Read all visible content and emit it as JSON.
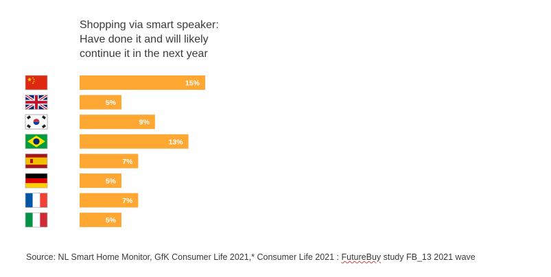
{
  "title_lines": [
    "Shopping via smart speaker:",
    "Have done it and will likely",
    "continue it in the next year"
  ],
  "source": {
    "prefix": "Source:  NL Smart Home Monitor, GfK Consumer Life 2021,* Consumer Life 2021 : ",
    "futurebuy": "FutureBuy",
    "suffix": " study FB_13 2021 wave"
  },
  "chart_data": {
    "type": "bar",
    "orientation": "horizontal",
    "categories": [
      "China",
      "United Kingdom",
      "South Korea",
      "Brazil",
      "Spain",
      "Germany",
      "France",
      "Italy"
    ],
    "category_icons": [
      "flag-china-icon",
      "flag-uk-icon",
      "flag-south-korea-icon",
      "flag-brazil-icon",
      "flag-spain-icon",
      "flag-germany-icon",
      "flag-france-icon",
      "flag-italy-icon"
    ],
    "values": [
      15,
      5,
      9,
      13,
      7,
      5,
      7,
      5
    ],
    "value_labels": [
      "15%",
      "5%",
      "9%",
      "13%",
      "7%",
      "5%",
      "7%",
      "5%"
    ],
    "unit": "%",
    "bar_color": "#FFA733",
    "label_color": "#ffffff",
    "xlim": [
      0,
      15
    ],
    "grid": false
  }
}
